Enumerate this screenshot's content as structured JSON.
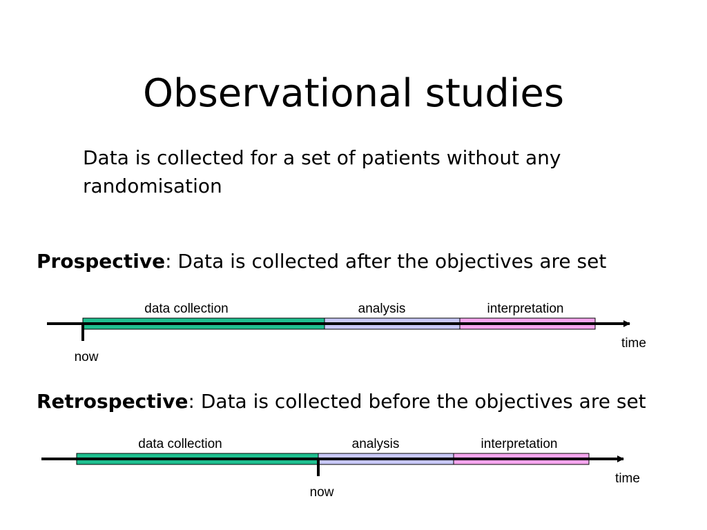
{
  "slide": {
    "title": "Observational studies",
    "intro": "Data is collected for a set of patients without any randomisation"
  },
  "prospective": {
    "term": "Prospective",
    "definition": ": Data is collected after the objectives are set",
    "phases": [
      "data collection",
      "analysis",
      "interpretation"
    ],
    "now_label": "now",
    "time_label": "time"
  },
  "retrospective": {
    "term": "Retrospective",
    "definition": ": Data is collected before the objectives are set",
    "phases": [
      "data collection",
      "analysis",
      "interpretation"
    ],
    "now_label": "now",
    "time_label": "time"
  },
  "colors": {
    "data_collection": "#1fbf8f",
    "analysis": "#c8c8f8",
    "interpretation": "#f6a6ee",
    "stroke": "#000000"
  }
}
